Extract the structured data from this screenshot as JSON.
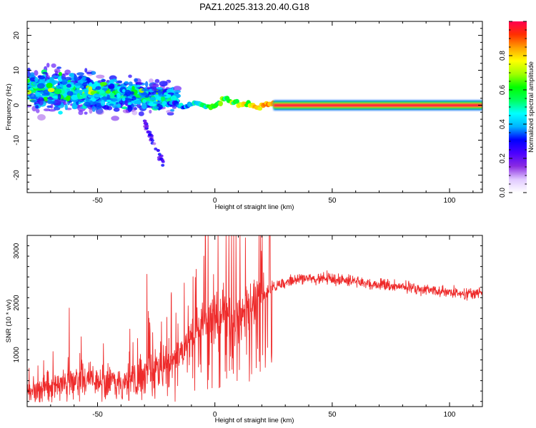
{
  "title": "PAZ1.2025.313.20.40.G18",
  "chart_data": [
    {
      "type": "heatmap",
      "name": "spectrogram",
      "xlabel": "Height of straight line (km)",
      "ylabel": "Frequency (Hz)",
      "xlim": [
        -80,
        114
      ],
      "ylim": [
        -25,
        24
      ],
      "xticks": [
        -50,
        0,
        50,
        100
      ],
      "yticks": [
        -20,
        -10,
        0,
        10,
        20
      ],
      "colorbar": {
        "label": "Normalized spectral amplitude",
        "range": [
          0,
          1
        ],
        "ticks": [
          "0.0",
          "0.2",
          "0.4",
          "0.6",
          "0.8"
        ],
        "colormap": [
          "#ffffff",
          "#e0c8ff",
          "#8a2be2",
          "#4b00ff",
          "#0000ff",
          "#00b4ff",
          "#00ffff",
          "#00ff60",
          "#00ff00",
          "#a0ff00",
          "#ffff00",
          "#ffa000",
          "#ff3000",
          "#ff0050"
        ]
      },
      "features": {
        "dominant_frequency_hz": 0,
        "noisy_region_km": [
          -80,
          -20
        ],
        "noisy_center_frequency_hz": [
          5,
          2
        ],
        "noisy_spread_hz": [
          10,
          5
        ],
        "transition_region_km": [
          -20,
          25
        ],
        "clean_tone_region_km": [
          25,
          114
        ],
        "clean_tone_amplitude": 1.0,
        "secondary_feature": {
          "x_km": [
            -30,
            -22
          ],
          "frequency_hz": [
            -5,
            -17
          ]
        }
      }
    },
    {
      "type": "line",
      "name": "snr",
      "xlabel": "Height of straight line (km)",
      "ylabel": "SNR (10 * v/v)",
      "xlim": [
        -80,
        114
      ],
      "ylim": [
        0,
        3300
      ],
      "xticks": [
        -50,
        0,
        50,
        100
      ],
      "yticks": [
        1000,
        2000,
        3000
      ],
      "color": "#ee2a2a",
      "series": [
        {
          "name": "SNR",
          "x": [
            -80,
            -75,
            -70,
            -65,
            -60,
            -55,
            -50,
            -45,
            -40,
            -35,
            -30,
            -25,
            -20,
            -15,
            -10,
            -5,
            0,
            5,
            8,
            10,
            15,
            20,
            25,
            30,
            35,
            40,
            50,
            60,
            70,
            80,
            90,
            100,
            110,
            114
          ],
          "y": [
            300,
            350,
            400,
            450,
            500,
            500,
            450,
            500,
            500,
            550,
            650,
            750,
            800,
            1000,
            1300,
            1500,
            1750,
            1850,
            1600,
            1700,
            1950,
            2150,
            2300,
            2400,
            2450,
            2480,
            2450,
            2400,
            2350,
            2300,
            2250,
            2200,
            2180,
            2200
          ]
        }
      ],
      "spikes": [
        {
          "x": 9,
          "y": 3300
        },
        {
          "x": 9.5,
          "y": 500
        },
        {
          "x": -29,
          "y": 2550
        },
        {
          "x": -62,
          "y": 1900
        },
        {
          "x": -17,
          "y": 100
        }
      ]
    }
  ]
}
